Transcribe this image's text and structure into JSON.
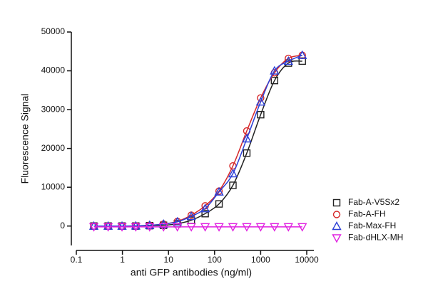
{
  "chart_data": {
    "type": "scatter",
    "x_label": "anti GFP antibodies (ng/ml)",
    "y_label": "Fluorescence Signal",
    "x_log": true,
    "xlim": [
      0.1,
      10000
    ],
    "xticks": [
      0.1,
      1,
      10,
      100,
      1000,
      10000
    ],
    "ylim": [
      -5000,
      50000
    ],
    "yticks": [
      0,
      10000,
      20000,
      30000,
      40000,
      50000
    ],
    "x": [
      0.24,
      0.49,
      0.98,
      1.95,
      3.9,
      7.8,
      15.6,
      31.25,
      62.5,
      125,
      250,
      500,
      1000,
      2000,
      4000,
      8000
    ],
    "series": [
      {
        "name": "Fab-A-V5Sx2",
        "color": "#222222",
        "marker": "square",
        "values": [
          0,
          0,
          0,
          0,
          100,
          200,
          600,
          1500,
          3200,
          5700,
          10500,
          18800,
          28700,
          37500,
          42000,
          42500
        ]
      },
      {
        "name": "Fab-A-FH",
        "color": "#d62728",
        "marker": "circle",
        "values": [
          0,
          0,
          0,
          50,
          200,
          500,
          1200,
          2800,
          5200,
          9000,
          15500,
          24500,
          33000,
          39500,
          43200,
          44000
        ]
      },
      {
        "name": "Fab-Max-FH",
        "color": "#2b3fd6",
        "marker": "triangle",
        "values": [
          0,
          0,
          0,
          50,
          200,
          500,
          1100,
          2500,
          4500,
          8800,
          13500,
          22500,
          32000,
          40000,
          42500,
          44000
        ]
      },
      {
        "name": "Fab-dHLX-MH",
        "color": "#e020e0",
        "marker": "triangle-down",
        "values": [
          -200,
          -200,
          -200,
          -200,
          -200,
          -200,
          -200,
          -200,
          -200,
          -200,
          -200,
          -200,
          -200,
          -200,
          -200,
          -200
        ]
      }
    ]
  }
}
